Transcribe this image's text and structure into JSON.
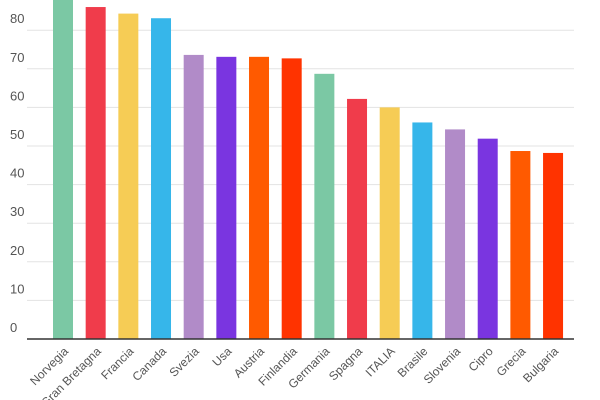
{
  "chart_data": {
    "type": "bar",
    "title": "",
    "xlabel": "",
    "ylabel": "",
    "ylim": [
      0,
      88
    ],
    "yticks": [
      0,
      10,
      20,
      30,
      40,
      50,
      60,
      70,
      80
    ],
    "grid": true,
    "legend": "none",
    "categories": [
      "Norvegia",
      "Gran Bretagna",
      "Francia",
      "Canada",
      "Svezia",
      "Usa",
      "Austria",
      "Finlandia",
      "Germania",
      "Spagna",
      "ITALIA",
      "Brasile",
      "Slovenia",
      "Cipro",
      "Grecia",
      "Bulgaria"
    ],
    "values": [
      90,
      86,
      84.3,
      83.1,
      73.6,
      73.1,
      73.1,
      72.7,
      68.7,
      62.2,
      60,
      56.1,
      54.3,
      51.9,
      48.7,
      48.2
    ],
    "colors": [
      "#7bc8a4",
      "#f03c4b",
      "#f6cc55",
      "#36b6ea",
      "#b18bc8",
      "#7a35e0",
      "#ff5a00",
      "#ff3300",
      "#7bc8a4",
      "#f03c4b",
      "#f6cc55",
      "#36b6ea",
      "#b18bc8",
      "#7a35e0",
      "#ff5a00",
      "#ff3300"
    ]
  }
}
